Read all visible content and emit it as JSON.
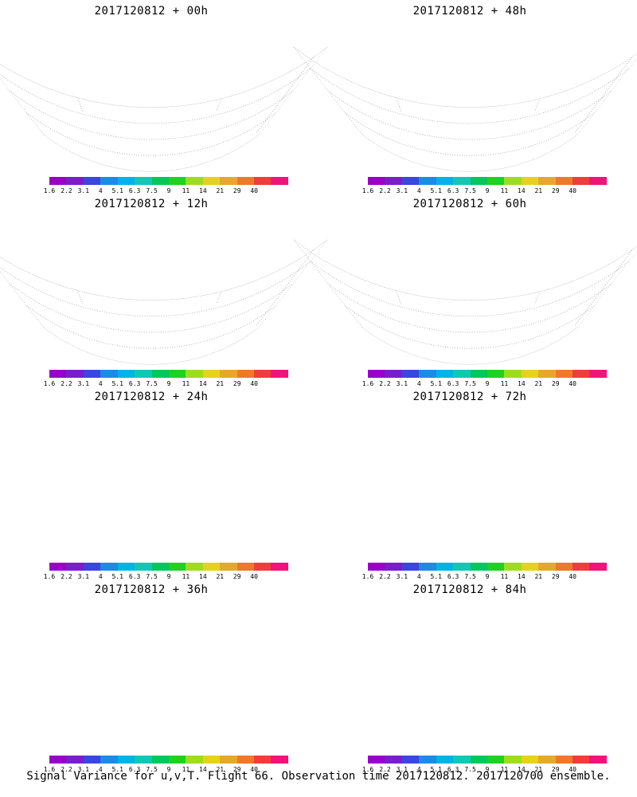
{
  "panels": [
    {
      "title": "2017120812 + 00h",
      "intensity": 0.2
    },
    {
      "title": "2017120812 + 48h",
      "intensity": 0.75
    },
    {
      "title": "2017120812 + 12h",
      "intensity": 0.3
    },
    {
      "title": "2017120812 + 60h",
      "intensity": 0.85
    },
    {
      "title": "2017120812 + 24h",
      "intensity": 0.45
    },
    {
      "title": "2017120812 + 72h",
      "intensity": 0.9
    },
    {
      "title": "2017120812 + 36h",
      "intensity": 0.6
    },
    {
      "title": "2017120812 + 84h",
      "intensity": 0.95
    }
  ],
  "colorbar": {
    "labels": [
      "1.6",
      "2.2",
      "3.1",
      "4",
      "5.1",
      "6.3",
      "7.5",
      "9",
      "11",
      "14",
      "21",
      "29",
      "40"
    ],
    "colors": [
      "#9900cc",
      "#7a1ecc",
      "#3a46e0",
      "#1a8ce6",
      "#00b4e6",
      "#12c8b4",
      "#00c85a",
      "#1ed21e",
      "#a0dc1e",
      "#e6d21e",
      "#e6a82a",
      "#f0782a",
      "#f03c3c",
      "#f0147a"
    ]
  },
  "footer": {
    "caption": "Signal Variance for u,v,T. Flight 66. Observation time 2017120812. 2017120700 ensemble."
  }
}
